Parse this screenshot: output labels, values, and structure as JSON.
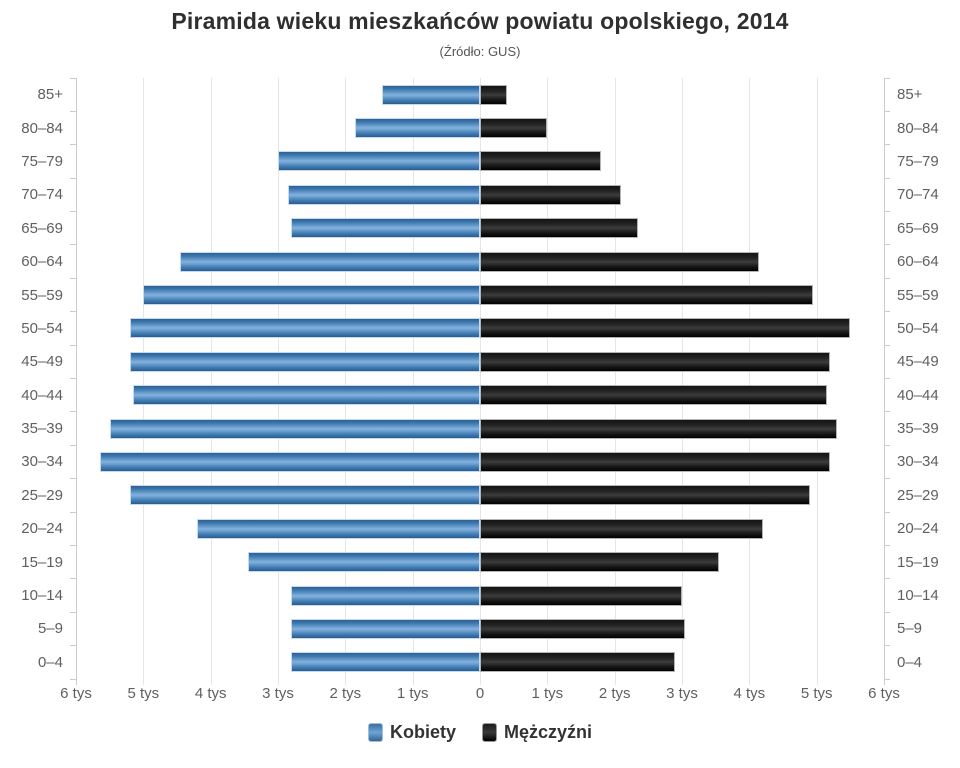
{
  "title": "Piramida wieku mieszkańców powiatu opolskiego, 2014",
  "subtitle": "(Źródło: GUS)",
  "legend": {
    "items": [
      {
        "key": "women",
        "label": "Kobiety",
        "color": "#4379b0"
      },
      {
        "key": "men",
        "label": "Mężczyźni",
        "color": "#1a1a1a"
      }
    ]
  },
  "chart_data": {
    "type": "bar",
    "variant": "population-pyramid",
    "title": "Piramida wieku mieszkańców powiatu opolskiego, 2014",
    "subtitle": "(Źródło: GUS)",
    "grid": true,
    "legend_position": "bottom",
    "categories": [
      "85+",
      "80–84",
      "75–79",
      "70–74",
      "65–69",
      "60–64",
      "55–59",
      "50–54",
      "45–49",
      "40–44",
      "35–39",
      "30–34",
      "25–29",
      "20–24",
      "15–19",
      "10–14",
      "5–9",
      "0–4"
    ],
    "series": [
      {
        "name": "Kobiety",
        "side": "left",
        "color": "#4379b0",
        "values": [
          1450,
          1850,
          3000,
          2850,
          2800,
          4450,
          5000,
          5200,
          5200,
          5150,
          5500,
          5650,
          5200,
          4200,
          3450,
          2800,
          2800,
          2800
        ]
      },
      {
        "name": "Mężczyźni",
        "side": "right",
        "color": "#1a1a1a",
        "values": [
          400,
          1000,
          1800,
          2100,
          2350,
          4150,
          4950,
          5500,
          5200,
          5150,
          5300,
          5200,
          4900,
          4200,
          3550,
          3000,
          3050,
          2900
        ]
      }
    ],
    "x_axis": {
      "max": 6000,
      "tick_interval": 1000,
      "labels": [
        "6 tys",
        "5 tys",
        "4 tys",
        "3 tys",
        "2 tys",
        "1 tys",
        "0",
        "1 tys",
        "2 tys",
        "3 tys",
        "4 tys",
        "5 tys",
        "6 tys"
      ]
    }
  }
}
